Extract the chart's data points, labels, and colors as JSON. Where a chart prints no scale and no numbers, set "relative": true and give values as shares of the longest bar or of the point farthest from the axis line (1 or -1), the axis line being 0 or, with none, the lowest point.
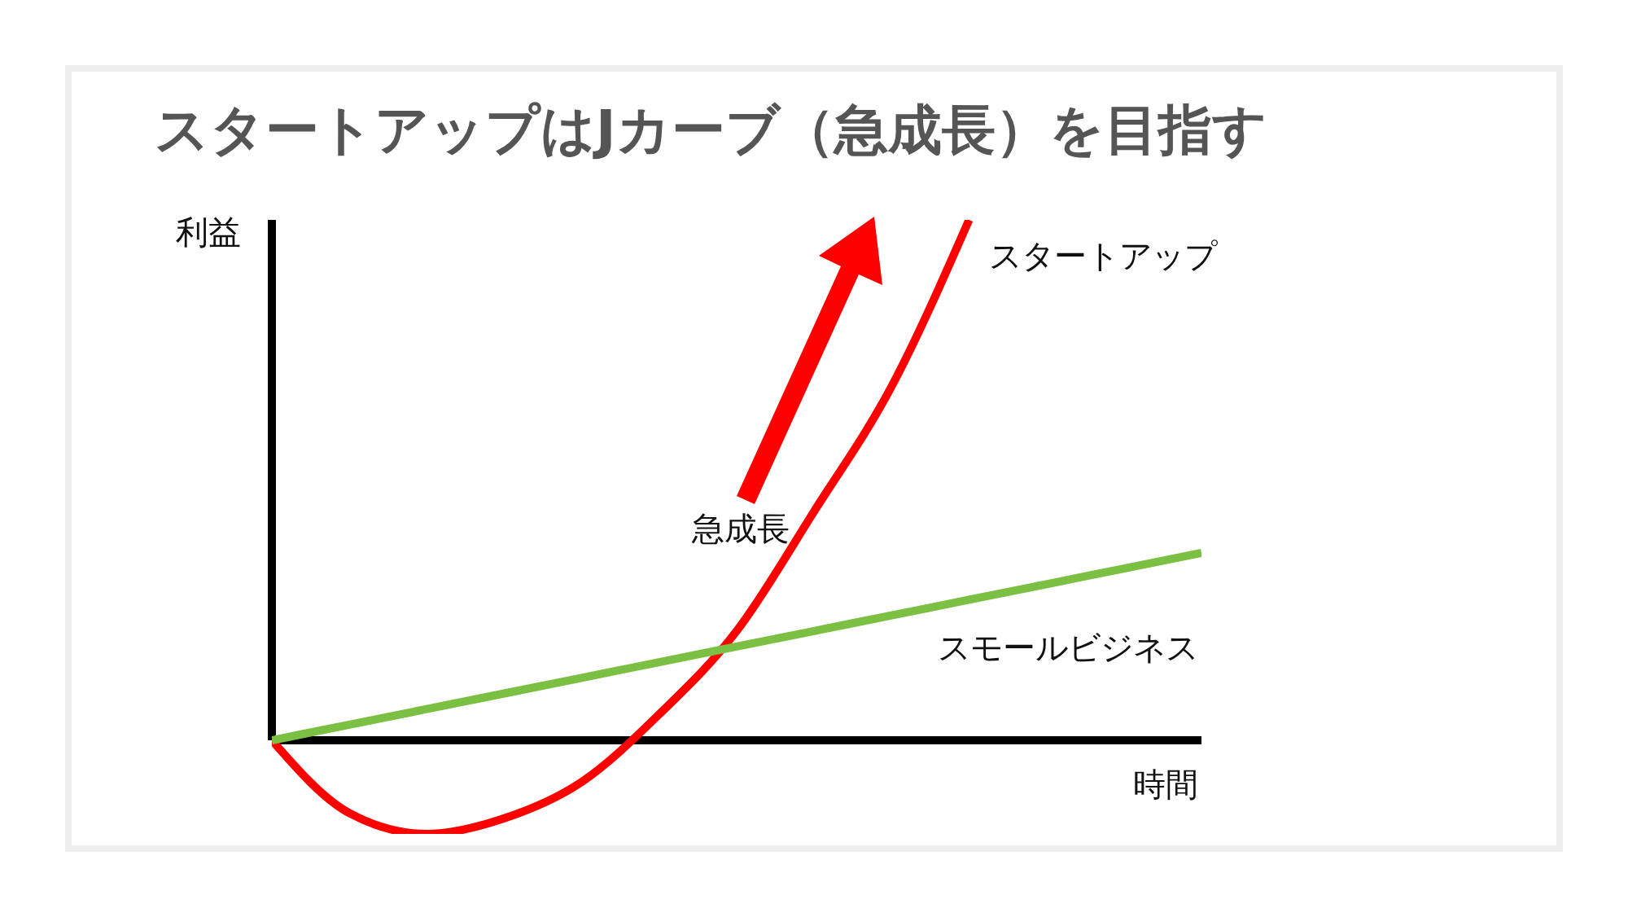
{
  "chart_data": {
    "type": "line",
    "title": "スタートアップはJカーブ（急成長）を目指す",
    "xlabel": "時間",
    "ylabel": "利益",
    "annotations": [
      "急成長"
    ],
    "categories": [
      null,
      null,
      null,
      null,
      null,
      null,
      null,
      null,
      null,
      null,
      null,
      null,
      null
    ],
    "relative": true,
    "marker": "none",
    "line_style": "solid",
    "series": [
      {
        "name": "スタートアップ",
        "color": "#ff0000",
        "values": [
          0,
          -0.14,
          -0.18,
          -0.15,
          -0.08,
          0.05,
          0.21,
          0.44,
          0.68,
          1,
          null,
          null,
          null
        ]
      },
      {
        "name": "スモールビジネス",
        "color": "#7bc043",
        "values": [
          0,
          0.03,
          0.06,
          0.09,
          0.12,
          0.15,
          0.18,
          0.21,
          0.24,
          0.27,
          0.3,
          0.33,
          0.36
        ]
      }
    ]
  }
}
